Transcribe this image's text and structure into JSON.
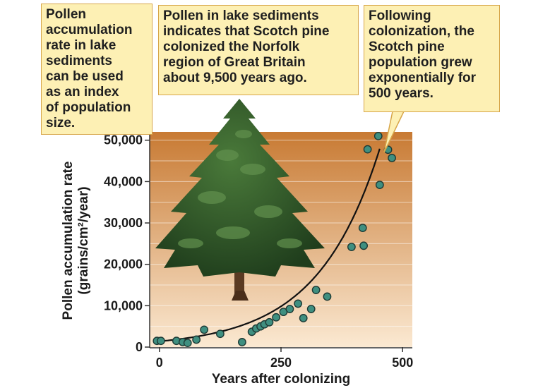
{
  "callouts": {
    "left": "Pollen\naccumulation\nrate in lake\nsediments\ncan be used\nas an index\nof population\nsize.",
    "middle": "Pollen in lake sediments\nindicates that Scotch pine\ncolonized the Norfolk\nregion of Great Britain\nabout 9,500 years ago.",
    "right": "Following\ncolonization, the\nScotch pine\npopulation grew\nexponentially for\n500 years."
  },
  "colors": {
    "panel_top": "#c87a33",
    "panel_bottom": "#fbe9d2",
    "point_fill": "#3f8f80",
    "curve": "#111111",
    "callout_fill": "#fdf0b4",
    "callout_border": "#d7a64a"
  },
  "chart_data": {
    "type": "scatter",
    "xlabel": "Years after colonizing",
    "ylabel_line1": "Pollen accumulation rate",
    "ylabel_line2": "(grains/cm²/year)",
    "xlim": [
      -20,
      520
    ],
    "ylim": [
      0,
      52000
    ],
    "xticks": [
      0,
      250,
      500
    ],
    "xtick_labels": [
      "0",
      "250",
      "500"
    ],
    "yticks": [
      0,
      10000,
      20000,
      30000,
      40000,
      50000
    ],
    "ytick_labels": [
      "0",
      "10,000",
      "20,000",
      "30,000",
      "40,000",
      "50,000"
    ],
    "grid": true,
    "series": [
      {
        "points": [
          [
            -5,
            1500
          ],
          [
            3,
            1500
          ],
          [
            35,
            1500
          ],
          [
            48,
            1200
          ],
          [
            58,
            1000
          ],
          [
            76,
            1800
          ],
          [
            92,
            4200
          ],
          [
            125,
            3200
          ],
          [
            170,
            1200
          ],
          [
            190,
            3700
          ],
          [
            199,
            4500
          ],
          [
            208,
            5000
          ],
          [
            216,
            5500
          ],
          [
            226,
            6000
          ],
          [
            240,
            7200
          ],
          [
            255,
            8500
          ],
          [
            268,
            9200
          ],
          [
            285,
            10500
          ],
          [
            296,
            7000
          ],
          [
            312,
            9200
          ],
          [
            322,
            13800
          ],
          [
            345,
            12200
          ],
          [
            395,
            24200
          ],
          [
            420,
            24500
          ],
          [
            418,
            28800
          ],
          [
            428,
            47800
          ],
          [
            450,
            51000
          ],
          [
            453,
            39200
          ],
          [
            470,
            47700
          ],
          [
            478,
            45700
          ]
        ]
      }
    ],
    "fit_curve": {
      "type": "exponential",
      "A": 1400,
      "k": 0.0078,
      "x_end": 455
    }
  }
}
